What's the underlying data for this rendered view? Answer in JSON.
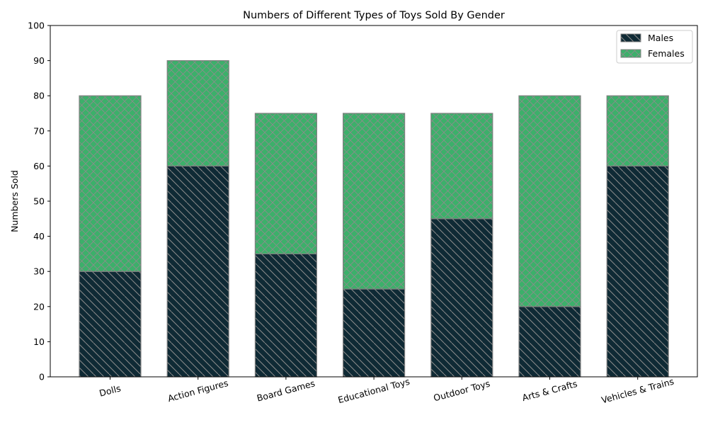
{
  "chart_data": {
    "type": "bar",
    "stacked": true,
    "title": "Numbers of Different Types of Toys Sold By Gender",
    "xlabel": "",
    "ylabel": "Numbers Sold",
    "categories": [
      "Dolls",
      "Action Figures",
      "Board Games",
      "Educational Toys",
      "Outdoor Toys",
      "Arts & Crafts",
      "Vehicles & Trains"
    ],
    "series": [
      {
        "name": "Males",
        "values": [
          30,
          60,
          35,
          25,
          45,
          20,
          60
        ],
        "color": "#0f2a35",
        "hatch": "backslash"
      },
      {
        "name": "Females",
        "values": [
          50,
          30,
          40,
          50,
          30,
          60,
          20
        ],
        "color": "#3cb06a",
        "hatch": "crosshatch"
      }
    ],
    "ylim": [
      0,
      100
    ],
    "yticks": [
      0,
      10,
      20,
      30,
      40,
      50,
      60,
      70,
      80,
      90,
      100
    ],
    "legend_position": "top-right",
    "grid": false,
    "edge_color": "#808080"
  }
}
